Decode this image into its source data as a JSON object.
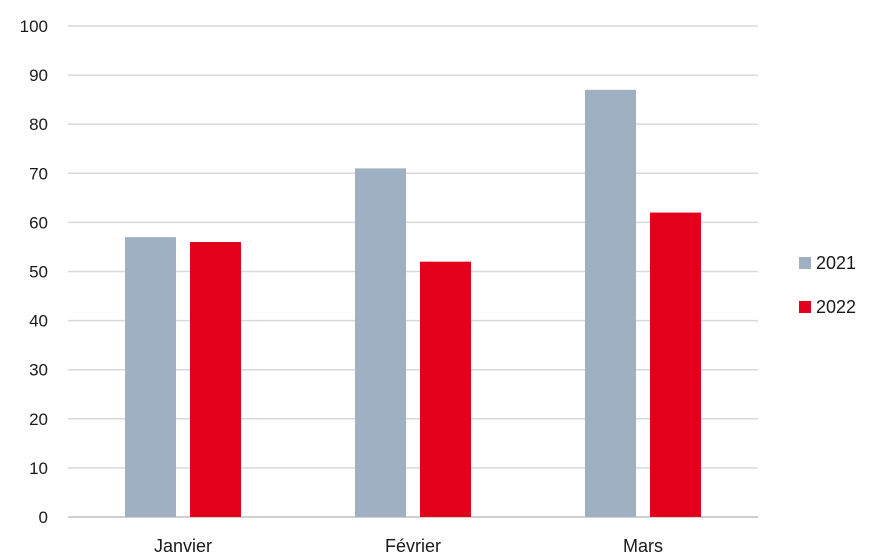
{
  "chart_data": {
    "type": "bar",
    "title": "",
    "xlabel": "",
    "ylabel": "",
    "categories": [
      "Janvier",
      "Février",
      "Mars"
    ],
    "series": [
      {
        "name": "2021",
        "values": [
          57,
          71,
          87
        ],
        "color": "#9eb0c1"
      },
      {
        "name": "2022",
        "values": [
          56,
          52,
          62
        ],
        "color": "#e2001a"
      }
    ],
    "ylim": [
      0,
      100
    ],
    "yticks": [
      0,
      10,
      20,
      30,
      40,
      50,
      60,
      70,
      80,
      90,
      100
    ],
    "grid": true,
    "legend_position": "right"
  }
}
